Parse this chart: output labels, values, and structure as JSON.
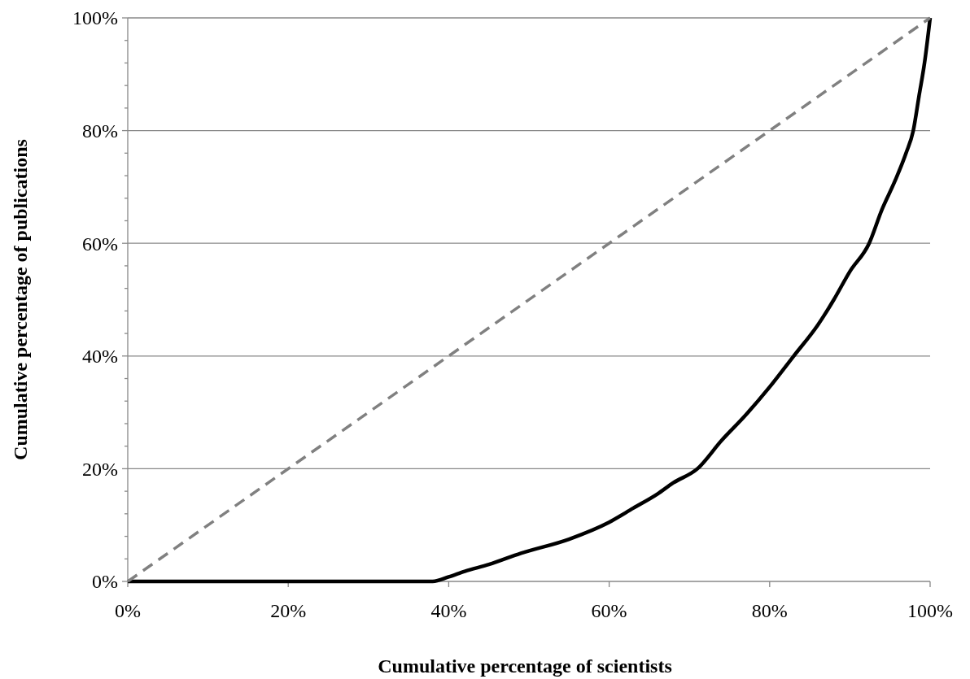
{
  "chart_data": {
    "type": "line",
    "xlabel": "Cumulative percentage of scientists",
    "ylabel": "Cumulative percentage of publications",
    "xlim": [
      0,
      100
    ],
    "ylim": [
      0,
      100
    ],
    "xticks": [
      {
        "value": 0,
        "label": "0%"
      },
      {
        "value": 20,
        "label": "20%"
      },
      {
        "value": 40,
        "label": "40%"
      },
      {
        "value": 60,
        "label": "60%"
      },
      {
        "value": 80,
        "label": "80%"
      },
      {
        "value": 100,
        "label": "100%"
      }
    ],
    "yticks": [
      {
        "value": 0,
        "label": "0%"
      },
      {
        "value": 4,
        "label": null
      },
      {
        "value": 8,
        "label": null
      },
      {
        "value": 12,
        "label": null
      },
      {
        "value": 16,
        "label": null
      },
      {
        "value": 20,
        "label": "20%"
      },
      {
        "value": 24,
        "label": null
      },
      {
        "value": 28,
        "label": null
      },
      {
        "value": 32,
        "label": null
      },
      {
        "value": 36,
        "label": null
      },
      {
        "value": 40,
        "label": "40%"
      },
      {
        "value": 44,
        "label": null
      },
      {
        "value": 48,
        "label": null
      },
      {
        "value": 52,
        "label": null
      },
      {
        "value": 56,
        "label": null
      },
      {
        "value": 60,
        "label": "60%"
      },
      {
        "value": 64,
        "label": null
      },
      {
        "value": 68,
        "label": null
      },
      {
        "value": 72,
        "label": null
      },
      {
        "value": 76,
        "label": null
      },
      {
        "value": 80,
        "label": "80%"
      },
      {
        "value": 84,
        "label": null
      },
      {
        "value": 88,
        "label": null
      },
      {
        "value": 92,
        "label": null
      },
      {
        "value": 96,
        "label": null
      },
      {
        "value": 100,
        "label": "100%"
      }
    ],
    "grid": "y",
    "marker": "none",
    "series": [
      {
        "color": "#000000",
        "line_style": "solid",
        "x": [
          0,
          38,
          40,
          42,
          45,
          49,
          55,
          60,
          63,
          66,
          68,
          71,
          74,
          77,
          80,
          83,
          86,
          88,
          90,
          92.4,
          94,
          95.6,
          97,
          97.9,
          98.6,
          99.3,
          100
        ],
        "values": [
          0,
          0,
          0.8,
          1.8,
          3,
          5,
          7.5,
          10.5,
          13,
          15.5,
          17.5,
          20,
          25,
          29.5,
          34.5,
          40,
          45.5,
          50,
          55,
          60,
          66,
          71,
          76,
          80,
          86,
          92,
          100
        ]
      },
      {
        "color": "#808080",
        "line_style": "dashed",
        "x": [
          0,
          100
        ],
        "values": [
          0,
          100
        ]
      }
    ]
  }
}
